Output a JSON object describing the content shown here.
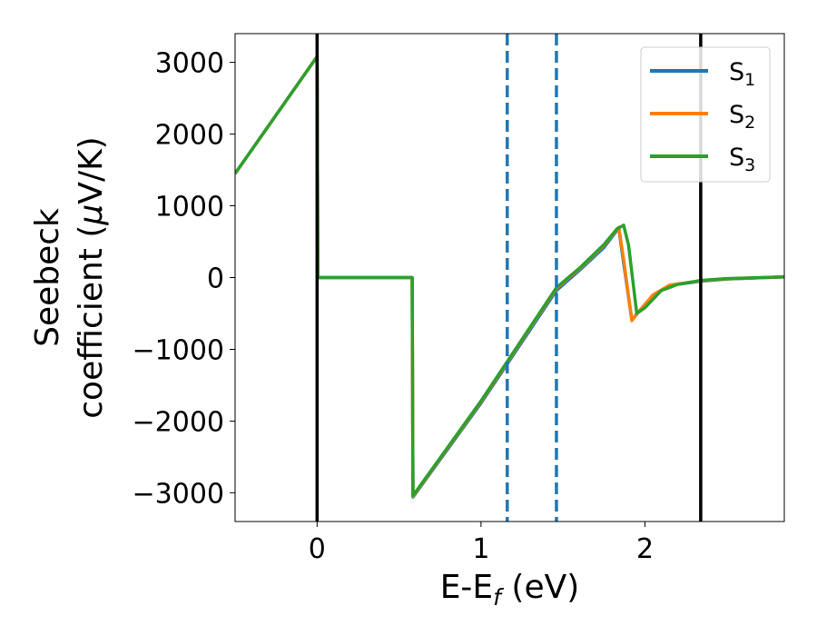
{
  "chart_data": {
    "type": "line",
    "title": "",
    "xlabel": "E-E",
    "xlabel_sub": "f",
    "xlabel_unit": " (eV)",
    "ylabel_line1": "Seebeck",
    "ylabel_line2_text": "coefficient  (",
    "ylabel_line2_mu": "μ",
    "ylabel_line2_unit": "V/K)",
    "xlim": [
      -0.5,
      2.85
    ],
    "ylim": [
      -3400,
      3400
    ],
    "x_ticks": [
      0,
      1,
      2
    ],
    "y_ticks": [
      3000,
      2000,
      1000,
      0,
      -1000,
      -2000,
      -3000
    ],
    "x_tick_labels": [
      "0",
      "1",
      "2"
    ],
    "y_tick_labels": [
      "3000",
      "2000",
      "1000",
      "0",
      "−1000",
      "−2000",
      "−3000"
    ],
    "grid": false,
    "legend_position": "top-right",
    "vlines_solid": [
      0,
      2.34
    ],
    "vlines_dashed": [
      1.16,
      1.46
    ],
    "series": [
      {
        "name": "S",
        "subscript": "1",
        "color": "#1f77b4",
        "points": [
          [
            -0.5,
            1450
          ],
          [
            0.0,
            3080
          ],
          [
            0.005,
            0
          ],
          [
            0.58,
            0
          ],
          [
            0.585,
            -3060
          ],
          [
            1.0,
            -1750
          ],
          [
            1.46,
            -180
          ],
          [
            1.6,
            100
          ],
          [
            1.75,
            420
          ],
          [
            1.84,
            690
          ],
          [
            1.87,
            200
          ],
          [
            1.92,
            -590
          ],
          [
            1.96,
            -480
          ],
          [
            2.05,
            -250
          ],
          [
            2.15,
            -110
          ],
          [
            2.34,
            -50
          ],
          [
            2.5,
            -20
          ],
          [
            2.85,
            10
          ]
        ]
      },
      {
        "name": "S",
        "subscript": "2",
        "color": "#ff7f0e",
        "points": [
          [
            -0.5,
            1450
          ],
          [
            0.0,
            3080
          ],
          [
            0.005,
            0
          ],
          [
            0.58,
            0
          ],
          [
            0.585,
            -3050
          ],
          [
            1.0,
            -1730
          ],
          [
            1.46,
            -150
          ],
          [
            1.6,
            120
          ],
          [
            1.75,
            450
          ],
          [
            1.84,
            700
          ],
          [
            1.87,
            250
          ],
          [
            1.92,
            -600
          ],
          [
            1.96,
            -480
          ],
          [
            2.05,
            -240
          ],
          [
            2.15,
            -105
          ],
          [
            2.34,
            -45
          ],
          [
            2.5,
            -18
          ],
          [
            2.85,
            10
          ]
        ]
      },
      {
        "name": "S",
        "subscript": "3",
        "color": "#2ca02c",
        "points": [
          [
            -0.5,
            1450
          ],
          [
            0.0,
            3080
          ],
          [
            0.005,
            0
          ],
          [
            0.58,
            0
          ],
          [
            0.585,
            -3040
          ],
          [
            1.0,
            -1720
          ],
          [
            1.46,
            -140
          ],
          [
            1.6,
            130
          ],
          [
            1.75,
            460
          ],
          [
            1.83,
            680
          ],
          [
            1.87,
            730
          ],
          [
            1.9,
            450
          ],
          [
            1.95,
            -500
          ],
          [
            2.0,
            -420
          ],
          [
            2.1,
            -180
          ],
          [
            2.2,
            -95
          ],
          [
            2.34,
            -40
          ],
          [
            2.5,
            -15
          ],
          [
            2.85,
            10
          ]
        ]
      }
    ]
  }
}
